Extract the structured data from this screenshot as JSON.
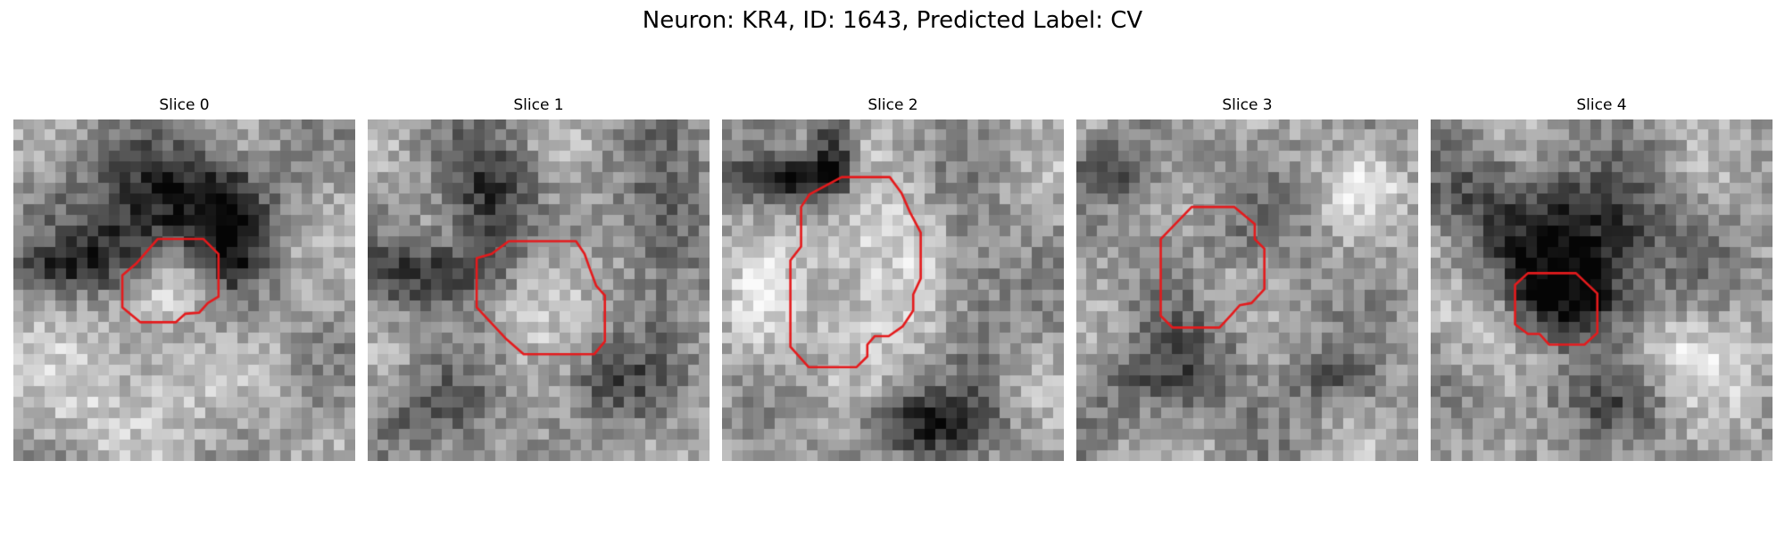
{
  "figure": {
    "title": "Neuron: KR4, ID: 1643, Predicted Label: CV"
  },
  "panels": [
    {
      "title": "Slice 0",
      "seed": 11,
      "contour_color": "#e41a1c"
    },
    {
      "title": "Slice 1",
      "seed": 23,
      "contour_color": "#e41a1c"
    },
    {
      "title": "Slice 2",
      "seed": 37,
      "contour_color": "#e41a1c"
    },
    {
      "title": "Slice 3",
      "seed": 41,
      "contour_color": "#e41a1c"
    },
    {
      "title": "Slice 4",
      "seed": 59,
      "contour_color": "#e41a1c"
    }
  ],
  "colors": {
    "background": "#ffffff",
    "contour": "#e41a1c"
  }
}
